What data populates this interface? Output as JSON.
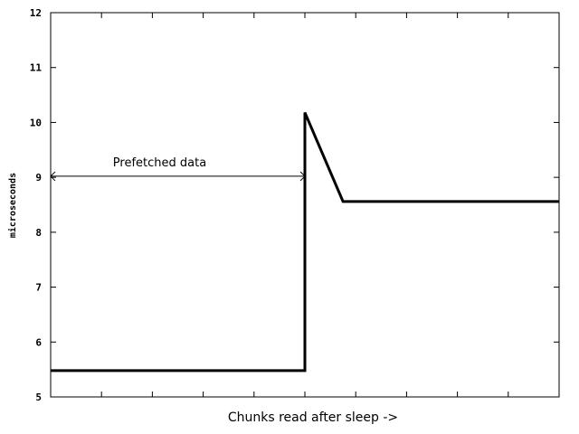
{
  "chart_data": {
    "type": "line",
    "title": "",
    "xlabel": "Chunks read after sleep ->",
    "ylabel": "microseconds",
    "ylim": [
      5,
      12
    ],
    "yticks": [
      "5",
      "6",
      "7",
      "8",
      "9",
      "10",
      "11",
      "12"
    ],
    "xlim": [
      0,
      10
    ],
    "xticks_count": 11,
    "grid": false,
    "legend": "none",
    "series": [
      {
        "x": [
          0,
          5,
          5,
          5.75,
          10
        ],
        "y": [
          5.48,
          5.48,
          10.18,
          8.56,
          8.56
        ]
      }
    ],
    "annotations": [
      {
        "text": "Prefetched data",
        "x_start": 0,
        "x_end": 5,
        "y": 9.02
      }
    ]
  }
}
